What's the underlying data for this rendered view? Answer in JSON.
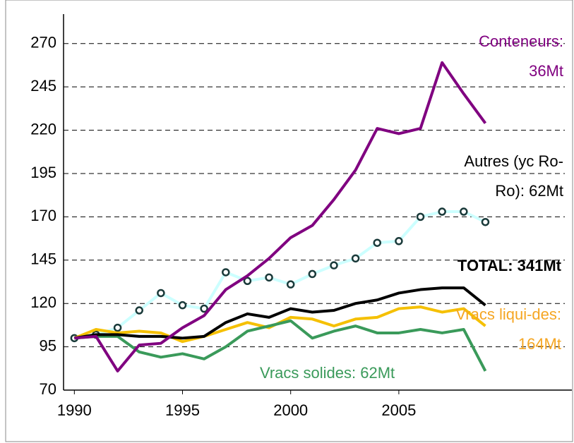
{
  "chart_data": {
    "type": "line",
    "x": [
      1990,
      1991,
      1992,
      1993,
      1994,
      1995,
      1996,
      1997,
      1998,
      1999,
      2000,
      2001,
      2002,
      2003,
      2004,
      2005,
      2006,
      2007,
      2008,
      2009
    ],
    "xlim": [
      1989.5,
      2013
    ],
    "xticks": [
      1990,
      1995,
      2000,
      2005
    ],
    "ylim": [
      70,
      287
    ],
    "yticks": [
      70,
      95,
      120,
      145,
      170,
      195,
      220,
      245,
      270
    ],
    "grid": true,
    "series": [
      {
        "label": [
          "Autres (yc Ro-",
          "Ro): 62Mt"
        ],
        "color": "#ccffff",
        "markers": true,
        "label_color": "#000000",
        "values": [
          100,
          102,
          106,
          116,
          126,
          119,
          117,
          138,
          133,
          135,
          131,
          137,
          142,
          146,
          155,
          156,
          170,
          173,
          173,
          167
        ]
      },
      {
        "label": [
          "Vracs liqui-des:",
          "164Mt"
        ],
        "color": "#f5c000",
        "label_color": "#f5a623",
        "values": [
          100,
          105,
          103,
          104,
          103,
          98,
          101,
          105,
          109,
          106,
          112,
          111,
          107,
          111,
          112,
          117,
          118,
          115,
          117,
          107
        ]
      },
      {
        "label": [
          "Vracs solides: 62Mt"
        ],
        "color": "#3a9a5a",
        "label_color": "#3a9a5a",
        "values": [
          100,
          101,
          101,
          92,
          89,
          91,
          88,
          95,
          104,
          107,
          110,
          100,
          104,
          107,
          103,
          103,
          105,
          103,
          105,
          81
        ]
      },
      {
        "label": [
          "TOTAL: 341Mt"
        ],
        "color": "#000000",
        "bold": true,
        "label_color": "#000000",
        "values": [
          100,
          102,
          102,
          101,
          101,
          100,
          101,
          109,
          114,
          112,
          117,
          115,
          116,
          120,
          122,
          126,
          128,
          129,
          129,
          119
        ]
      },
      {
        "label": [
          "Conteneurs:",
          "36Mt"
        ],
        "color": "#800080",
        "label_color": "#800080",
        "values": [
          100,
          101,
          81,
          96,
          97,
          106,
          113,
          128,
          136,
          146,
          158,
          165,
          180,
          197,
          221,
          218,
          221,
          259,
          241,
          224
        ]
      }
    ]
  }
}
